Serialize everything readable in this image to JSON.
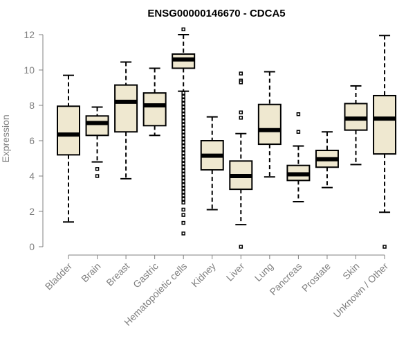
{
  "chart_data": {
    "type": "box",
    "title": "ENSG00000146670 - CDCA5",
    "ylabel": "Expression",
    "xlabel": "",
    "ylim": [
      0,
      12
    ],
    "yticks": [
      0,
      2,
      4,
      6,
      8,
      10,
      12
    ],
    "grid": false,
    "categories": [
      "Bladder",
      "Brain",
      "Breast",
      "Gastric",
      "Hematopoietic cells",
      "Kidney",
      "Liver",
      "Lung",
      "Pancreas",
      "Prostate",
      "Skin",
      "Unknown / Other"
    ],
    "boxes": [
      {
        "name": "Bladder",
        "whisker_low": 1.4,
        "q1": 5.2,
        "median": 6.35,
        "q3": 7.95,
        "whisker_high": 9.7,
        "outliers": []
      },
      {
        "name": "Brain",
        "whisker_low": 4.8,
        "q1": 6.3,
        "median": 7.0,
        "q3": 7.4,
        "whisker_high": 7.9,
        "outliers": [
          4.4,
          4.0
        ]
      },
      {
        "name": "Breast",
        "whisker_low": 3.85,
        "q1": 6.5,
        "median": 8.2,
        "q3": 9.15,
        "whisker_high": 10.45,
        "outliers": []
      },
      {
        "name": "Gastric",
        "whisker_low": 6.3,
        "q1": 6.85,
        "median": 8.0,
        "q3": 8.7,
        "whisker_high": 10.1,
        "outliers": []
      },
      {
        "name": "Hematopoietic cells",
        "whisker_low": 8.8,
        "q1": 10.1,
        "median": 10.6,
        "q3": 10.9,
        "whisker_high": 12.0,
        "outliers": [
          12.3,
          8.7,
          8.5,
          8.3,
          8.1,
          7.9,
          7.7,
          7.5,
          7.3,
          7.1,
          6.9,
          6.7,
          6.5,
          6.3,
          6.1,
          5.9,
          5.7,
          5.5,
          5.3,
          5.1,
          4.9,
          4.7,
          4.5,
          4.3,
          4.1,
          3.9,
          3.7,
          3.5,
          3.3,
          3.1,
          2.9,
          2.7,
          2.5,
          2.1,
          1.8,
          1.35,
          0.75
        ]
      },
      {
        "name": "Kidney",
        "whisker_low": 2.1,
        "q1": 4.35,
        "median": 5.15,
        "q3": 6.0,
        "whisker_high": 7.35,
        "outliers": []
      },
      {
        "name": "Liver",
        "whisker_low": 1.25,
        "q1": 3.25,
        "median": 4.0,
        "q3": 4.85,
        "whisker_high": 6.4,
        "outliers": [
          9.8,
          9.4,
          9.3,
          7.6,
          7.3,
          0.0
        ]
      },
      {
        "name": "Lung",
        "whisker_low": 3.95,
        "q1": 5.8,
        "median": 6.6,
        "q3": 8.05,
        "whisker_high": 9.9,
        "outliers": []
      },
      {
        "name": "Pancreas",
        "whisker_low": 2.55,
        "q1": 3.75,
        "median": 4.1,
        "q3": 4.6,
        "whisker_high": 5.7,
        "outliers": [
          7.5,
          6.5
        ]
      },
      {
        "name": "Prostate",
        "whisker_low": 3.35,
        "q1": 4.5,
        "median": 4.95,
        "q3": 5.45,
        "whisker_high": 6.5,
        "outliers": []
      },
      {
        "name": "Skin",
        "whisker_low": 4.65,
        "q1": 6.6,
        "median": 7.25,
        "q3": 8.1,
        "whisker_high": 9.1,
        "outliers": []
      },
      {
        "name": "Unknown / Other",
        "whisker_low": 1.95,
        "q1": 5.25,
        "median": 7.25,
        "q3": 8.55,
        "whisker_high": 11.95,
        "outliers": [
          0.0
        ]
      }
    ],
    "colors": {
      "box_fill": "#EFE8D0",
      "box_stroke": "#000000",
      "axis": "#808080",
      "text": "#808080",
      "title": "#000000"
    }
  }
}
